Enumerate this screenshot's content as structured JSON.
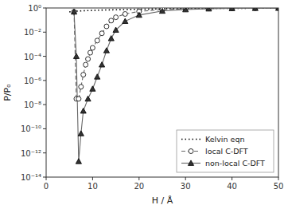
{
  "chart_data": {
    "type": "line",
    "xlabel": "H / Å",
    "ylabel": "P/Pₒ",
    "log": "y",
    "xlim": [
      0,
      50
    ],
    "ylim": [
      1e-14,
      1
    ],
    "xticks": [
      0,
      10,
      20,
      30,
      40,
      50
    ],
    "yticks": [
      {
        "value": 1e-14,
        "label": "10⁻¹⁴"
      },
      {
        "value": 1e-12,
        "label": "10⁻¹²"
      },
      {
        "value": 1e-10,
        "label": "10⁻¹⁰"
      },
      {
        "value": 1e-08,
        "label": "10⁻⁸"
      },
      {
        "value": 1e-06,
        "label": "10⁻⁶"
      },
      {
        "value": 0.0001,
        "label": "10⁻⁴"
      },
      {
        "value": 0.01,
        "label": "10⁻²"
      },
      {
        "value": 1,
        "label": "10⁰"
      }
    ],
    "grid": false,
    "legend": "lower right",
    "series": [
      {
        "name": "Kelvin eqn",
        "color": "#000000",
        "line_style": "dotted",
        "marker": "none",
        "x": [
          5,
          6,
          7,
          8,
          9,
          10,
          12,
          15,
          17,
          20,
          25,
          30,
          35,
          40,
          45,
          50
        ],
        "values": [
          0.48,
          0.52,
          0.56,
          0.59,
          0.61,
          0.63,
          0.67,
          0.71,
          0.74,
          0.78,
          0.84,
          0.88,
          0.92,
          0.94,
          0.96,
          0.97
        ]
      },
      {
        "name": "local C-DFT",
        "color": "#666666",
        "line_style": "dashed",
        "marker": "open-circle",
        "x": [
          6.0,
          6.5,
          7.0,
          7.5,
          8.0,
          8.5,
          9.0,
          9.5,
          10.0,
          11.0,
          12.0,
          13.0,
          14.0,
          15.0,
          17.0,
          20.0,
          25.0,
          30.0,
          35.0,
          40.0,
          45.0,
          50.0
        ],
        "values": [
          0.48,
          3e-08,
          3e-08,
          3e-07,
          3e-06,
          2e-05,
          6e-05,
          0.0002,
          0.0005,
          0.002,
          0.008,
          0.03,
          0.09,
          0.17,
          0.32,
          0.52,
          0.74,
          0.86,
          0.92,
          0.95,
          0.965,
          0.975
        ]
      },
      {
        "name": "non-local C-DFT",
        "color": "#666666",
        "line_style": "solid",
        "marker": "filled-triangle",
        "x": [
          6.0,
          6.5,
          7.0,
          7.5,
          8.0,
          9.0,
          10.0,
          11.0,
          12.0,
          13.0,
          14.0,
          15.0,
          17.0,
          20.0,
          25.0,
          30.0,
          35.0,
          40.0,
          45.0,
          50.0
        ],
        "values": [
          0.48,
          0.0001,
          2e-13,
          4e-11,
          3e-09,
          3e-08,
          2e-07,
          2e-06,
          2e-05,
          0.0003,
          0.003,
          0.015,
          0.08,
          0.26,
          0.56,
          0.74,
          0.86,
          0.92,
          0.955,
          0.97
        ]
      }
    ]
  }
}
